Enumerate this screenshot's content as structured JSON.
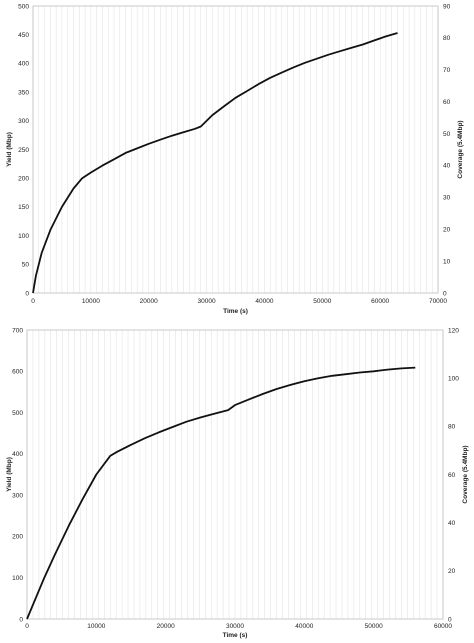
{
  "chart_data": [
    {
      "type": "line",
      "title": "",
      "xlabel": "Time (s)",
      "ylabel": "Yield (Mbp)",
      "y2label": "Coverage (5.4Mbp)",
      "xlim": [
        0,
        70000
      ],
      "ylim": [
        0,
        500
      ],
      "y2lim": [
        0,
        90
      ],
      "xticks": [
        0,
        10000,
        20000,
        30000,
        40000,
        50000,
        60000,
        70000
      ],
      "yticks": [
        0,
        50,
        100,
        150,
        200,
        250,
        300,
        350,
        400,
        450,
        500
      ],
      "y2ticks": [
        0,
        10,
        20,
        30,
        40,
        50,
        60,
        70,
        80,
        90
      ],
      "grid": "vertical",
      "series": [
        {
          "color": "#111111",
          "x": [
            0,
            500,
            1500,
            3000,
            5000,
            7000,
            8500,
            10000,
            12000,
            14000,
            16000,
            18000,
            20000,
            22000,
            24000,
            26000,
            28000,
            29000,
            31000,
            33000,
            35000,
            37000,
            39000,
            41000,
            43000,
            45000,
            47000,
            49000,
            51000,
            53000,
            55000,
            57000,
            59000,
            61000,
            63000
          ],
          "y": [
            0,
            30,
            70,
            110,
            150,
            182,
            200,
            210,
            222,
            233,
            244,
            252,
            260,
            267,
            274,
            280,
            286,
            290,
            310,
            325,
            340,
            352,
            364,
            375,
            384,
            393,
            401,
            408,
            415,
            421,
            427,
            433,
            440,
            447,
            453
          ]
        }
      ]
    },
    {
      "type": "line",
      "title": "",
      "xlabel": "Time (s)",
      "ylabel": "Yield (Mbp)",
      "y2label": "Coverage (5.4Mbp)",
      "xlim": [
        0,
        60000
      ],
      "ylim": [
        0,
        700
      ],
      "y2lim": [
        0,
        120
      ],
      "xticks": [
        0,
        10000,
        20000,
        30000,
        40000,
        50000,
        60000
      ],
      "yticks": [
        0,
        100,
        200,
        300,
        400,
        500,
        600,
        700
      ],
      "y2ticks": [
        0,
        20,
        40,
        60,
        80,
        100,
        120
      ],
      "grid": "vertical",
      "series": [
        {
          "color": "#111111",
          "x": [
            0,
            1000,
            2500,
            4000,
            6000,
            8000,
            10000,
            12000,
            13000,
            15000,
            17000,
            19000,
            21000,
            23000,
            25000,
            27000,
            29000,
            30000,
            32000,
            34000,
            36000,
            38000,
            40000,
            42000,
            44000,
            46000,
            48000,
            50000,
            52000,
            54000,
            56000
          ],
          "y": [
            0,
            40,
            100,
            155,
            225,
            290,
            350,
            395,
            405,
            422,
            438,
            452,
            465,
            478,
            488,
            497,
            506,
            518,
            532,
            545,
            557,
            567,
            576,
            583,
            589,
            593,
            597,
            600,
            604,
            607,
            609
          ]
        }
      ]
    }
  ]
}
